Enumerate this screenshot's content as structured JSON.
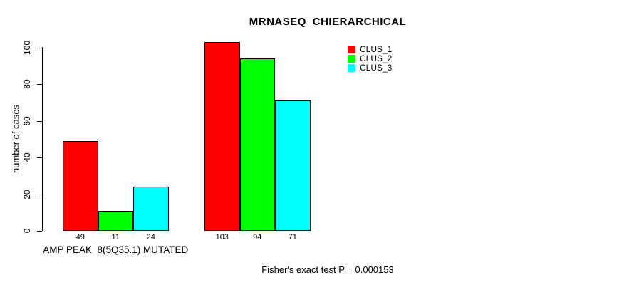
{
  "chart": {
    "title": "MRNASEQ_CHIERARCHICAL",
    "ylabel": "number of cases",
    "footer": "Fisher's exact test P = 0.000153"
  },
  "chart_data": {
    "type": "bar",
    "title": "MRNASEQ_CHIERARCHICAL",
    "xlabel": "",
    "ylabel": "number of cases",
    "categories": [
      "AMP PEAK  8(5Q35.1) MUTATED",
      ""
    ],
    "series": [
      {
        "name": "CLUS_1",
        "color": "#ff0000",
        "values": [
          49,
          103
        ]
      },
      {
        "name": "CLUS_2",
        "color": "#00ff00",
        "values": [
          11,
          94
        ]
      },
      {
        "name": "CLUS_3",
        "color": "#00ffff",
        "values": [
          24,
          71
        ]
      }
    ],
    "bar_value_labels": [
      [
        "49",
        "11",
        "24"
      ],
      [
        "103",
        "94",
        "71"
      ]
    ],
    "yticks": [
      0,
      20,
      40,
      60,
      80,
      100
    ],
    "ylim": [
      0,
      103
    ],
    "grid": false,
    "legend_position": "top-right",
    "legend_entries": [
      "CLUS_1",
      "CLUS_2",
      "CLUS_3"
    ],
    "annotation": "Fisher's exact test P = 0.000153"
  }
}
